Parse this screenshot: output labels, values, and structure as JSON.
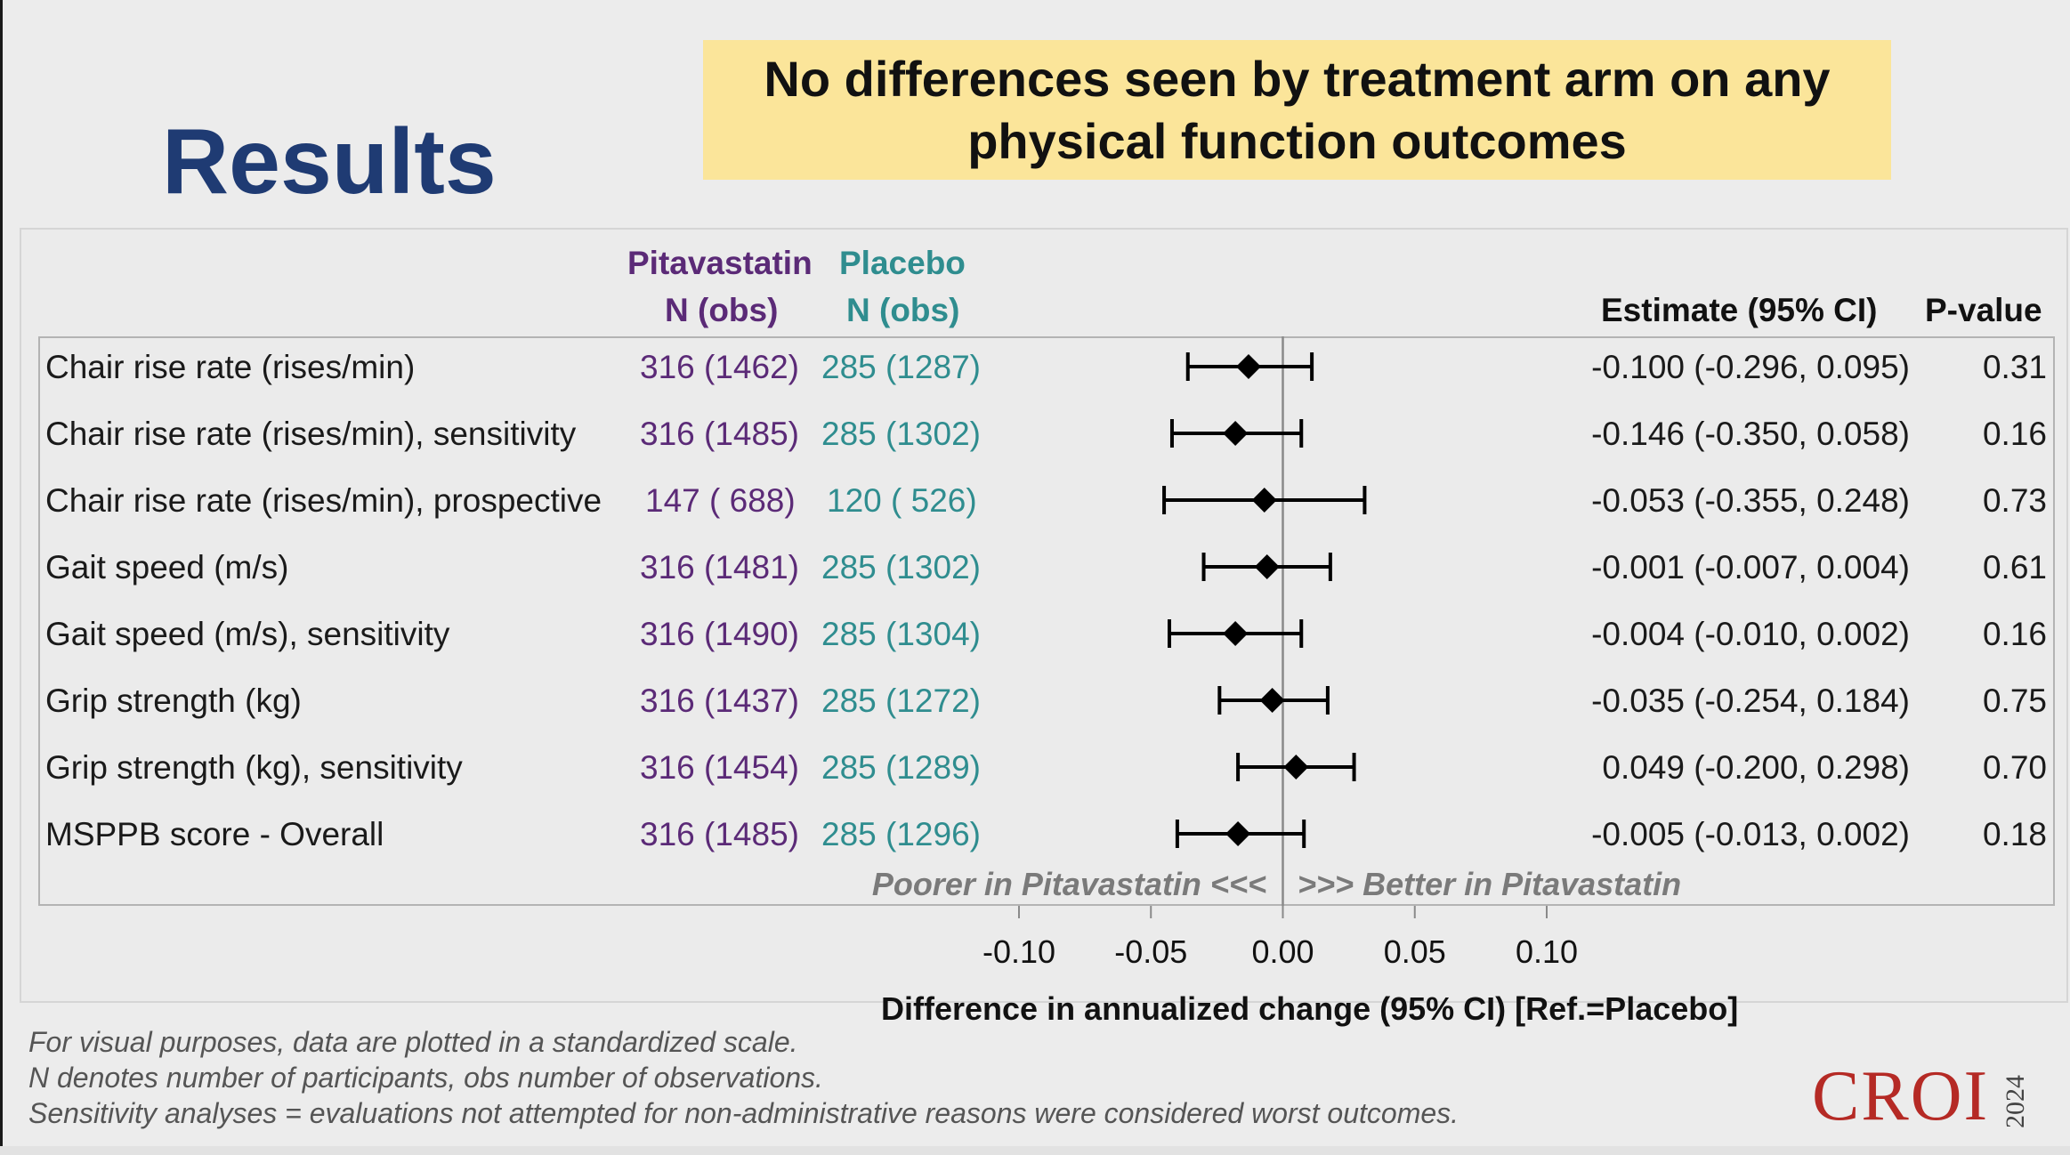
{
  "slide": {
    "title": "Results",
    "callout_line1": "No differences seen by treatment arm on any",
    "callout_line2": "physical function outcomes",
    "logo": "CROI",
    "logo_year": "2024",
    "accent_colors": {
      "title": "#1f3b73",
      "callout_bg": "#fbe59a",
      "pitavastatin": "#5b2a77",
      "placebo": "#2f8d8f",
      "logo": "#b52a25"
    }
  },
  "table": {
    "headers": {
      "pita_name": "Pitavastatin",
      "pita_sub": "N (obs)",
      "placebo_name": "Placebo",
      "placebo_sub": "N (obs)",
      "estimate": "Estimate (95% CI)",
      "pvalue": "P-value"
    },
    "rows": [
      {
        "outcome": "Chair rise rate (rises/min)",
        "pita": "316 (1462)",
        "placebo": "285 (1287)",
        "estimate": "-0.100 (-0.296, 0.095)",
        "p": "0.31"
      },
      {
        "outcome": "Chair rise rate (rises/min), sensitivity",
        "pita": "316 (1485)",
        "placebo": "285 (1302)",
        "estimate": "-0.146 (-0.350, 0.058)",
        "p": "0.16"
      },
      {
        "outcome": "Chair rise rate (rises/min), prospective",
        "pita": "147 ( 688)",
        "placebo": "120 ( 526)",
        "estimate": "-0.053 (-0.355, 0.248)",
        "p": "0.73"
      },
      {
        "outcome": "Gait speed (m/s)",
        "pita": "316 (1481)",
        "placebo": "285 (1302)",
        "estimate": "-0.001 (-0.007, 0.004)",
        "p": "0.61"
      },
      {
        "outcome": "Gait speed (m/s), sensitivity",
        "pita": "316 (1490)",
        "placebo": "285 (1304)",
        "estimate": "-0.004 (-0.010, 0.002)",
        "p": "0.16"
      },
      {
        "outcome": "Grip strength (kg)",
        "pita": "316 (1437)",
        "placebo": "285 (1272)",
        "estimate": "-0.035 (-0.254, 0.184)",
        "p": "0.75"
      },
      {
        "outcome": "Grip strength (kg), sensitivity",
        "pita": "316 (1454)",
        "placebo": "285 (1289)",
        "estimate": "0.049 (-0.200, 0.298)",
        "p": "0.70"
      },
      {
        "outcome": "MSPPB score - Overall",
        "pita": "316 (1485)",
        "placebo": "285 (1296)",
        "estimate": "-0.005 (-0.013, 0.002)",
        "p": "0.18"
      }
    ],
    "direction_left": "Poorer in Pitavastatin <<<",
    "direction_right": ">>> Better in Pitavastatin"
  },
  "chart_data": {
    "type": "forest",
    "xlabel": "Difference in annualized change (95% CI) [Ref.=Placebo]",
    "x_ticks": [
      "-0.10",
      "-0.05",
      "0.00",
      "0.05",
      "0.10"
    ],
    "xlim": [
      -0.1,
      0.1
    ],
    "reference_line": 0.0,
    "scale_note": "standardized",
    "points": [
      {
        "estimate": -0.013,
        "lower": -0.036,
        "upper": 0.011
      },
      {
        "estimate": -0.018,
        "lower": -0.042,
        "upper": 0.007
      },
      {
        "estimate": -0.007,
        "lower": -0.045,
        "upper": 0.031
      },
      {
        "estimate": -0.006,
        "lower": -0.03,
        "upper": 0.018
      },
      {
        "estimate": -0.018,
        "lower": -0.043,
        "upper": 0.007
      },
      {
        "estimate": -0.004,
        "lower": -0.024,
        "upper": 0.017
      },
      {
        "estimate": 0.005,
        "lower": -0.017,
        "upper": 0.027
      },
      {
        "estimate": -0.017,
        "lower": -0.04,
        "upper": 0.008
      }
    ]
  },
  "notes": [
    "For visual purposes, data are plotted in a standardized scale.",
    "N denotes number of participants, obs number of observations.",
    "Sensitivity analyses = evaluations not attempted for non-administrative reasons were considered worst outcomes."
  ]
}
